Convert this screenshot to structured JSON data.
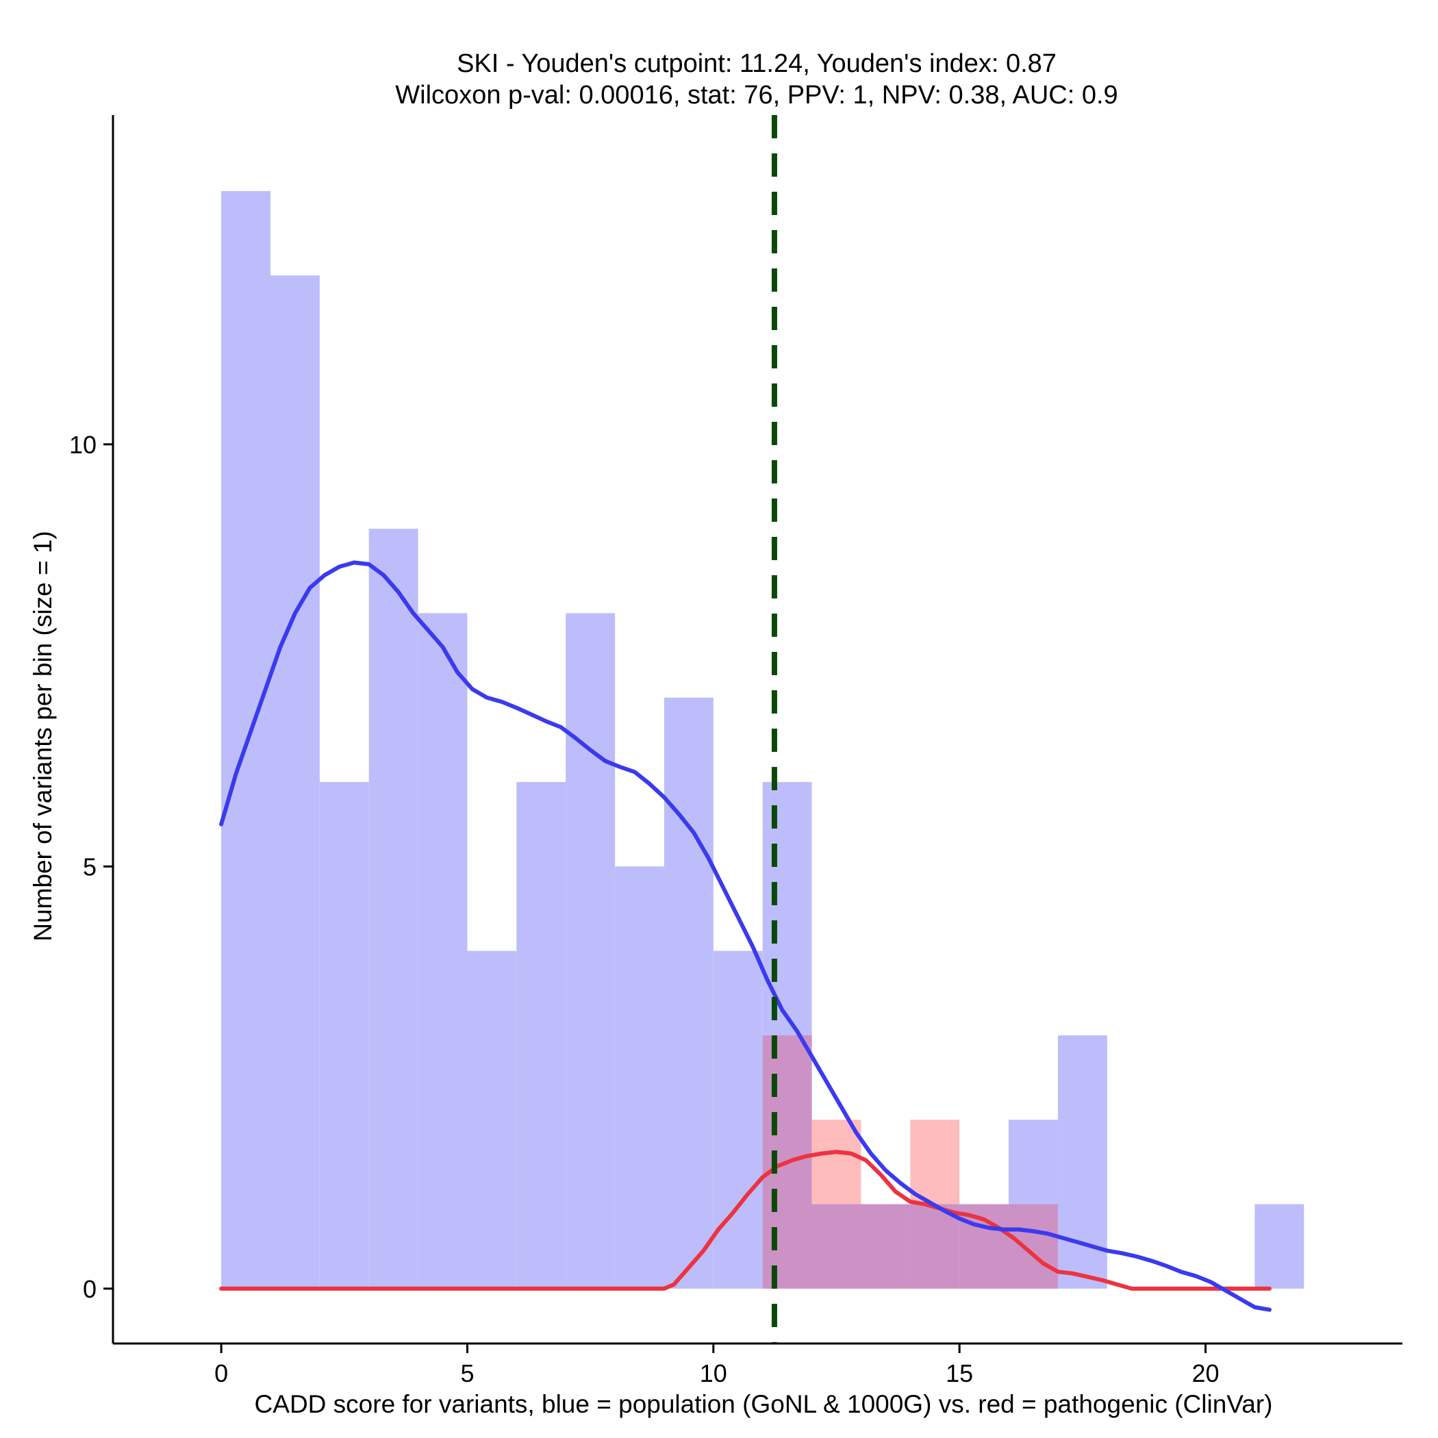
{
  "chart_data": {
    "type": "histogram",
    "title_line1": "SKI - Youden's cutpoint: 11.24, Youden's index: 0.87",
    "title_line2": "Wilcoxon p-val: 0.00016, stat: 76, PPV: 1, NPV: 0.38, AUC: 0.9",
    "xlabel": "CADD score for variants, blue = population (GoNL & 1000G) vs. red = pathogenic (ClinVar)",
    "ylabel": "Number of variants per bin (size = 1)",
    "xlim": [
      -2.2,
      24.0
    ],
    "ylim": [
      -0.65,
      13.9
    ],
    "x_ticks": [
      0,
      5,
      10,
      15,
      20
    ],
    "y_ticks": [
      0,
      5,
      10
    ],
    "cutpoint": 11.24,
    "colors": {
      "population_bar": "#bdbdfb",
      "pathogenic_bar": "#ffbcbc",
      "overlap_bar": "#cc92c6",
      "population_line": "#3a3aef",
      "pathogenic_line": "#ec3340",
      "cutpoint_line": "#0a4a06"
    },
    "series": [
      {
        "name": "population (GoNL & 1000G)",
        "bins": [
          {
            "x0": 0,
            "x1": 1,
            "count": 13
          },
          {
            "x0": 1,
            "x1": 2,
            "count": 12
          },
          {
            "x0": 2,
            "x1": 3,
            "count": 6
          },
          {
            "x0": 3,
            "x1": 4,
            "count": 9
          },
          {
            "x0": 4,
            "x1": 5,
            "count": 8
          },
          {
            "x0": 5,
            "x1": 6,
            "count": 4
          },
          {
            "x0": 6,
            "x1": 7,
            "count": 6
          },
          {
            "x0": 7,
            "x1": 8,
            "count": 8
          },
          {
            "x0": 8,
            "x1": 9,
            "count": 5
          },
          {
            "x0": 9,
            "x1": 10,
            "count": 7
          },
          {
            "x0": 10,
            "x1": 11,
            "count": 4
          },
          {
            "x0": 11,
            "x1": 12,
            "count": 6
          },
          {
            "x0": 12,
            "x1": 13,
            "count": 1
          },
          {
            "x0": 13,
            "x1": 14,
            "count": 1
          },
          {
            "x0": 14,
            "x1": 15,
            "count": 1
          },
          {
            "x0": 15,
            "x1": 16,
            "count": 1
          },
          {
            "x0": 16,
            "x1": 17,
            "count": 2
          },
          {
            "x0": 17,
            "x1": 18,
            "count": 3
          },
          {
            "x0": 21,
            "x1": 22,
            "count": 1
          }
        ],
        "density_curve": [
          [
            0.0,
            5.5
          ],
          [
            0.3,
            6.1
          ],
          [
            0.6,
            6.6
          ],
          [
            0.9,
            7.1
          ],
          [
            1.2,
            7.6
          ],
          [
            1.5,
            8.0
          ],
          [
            1.8,
            8.3
          ],
          [
            2.1,
            8.45
          ],
          [
            2.4,
            8.55
          ],
          [
            2.7,
            8.6
          ],
          [
            3.0,
            8.58
          ],
          [
            3.3,
            8.45
          ],
          [
            3.6,
            8.25
          ],
          [
            3.9,
            8.0
          ],
          [
            4.2,
            7.8
          ],
          [
            4.5,
            7.6
          ],
          [
            4.8,
            7.3
          ],
          [
            5.1,
            7.1
          ],
          [
            5.4,
            7.0
          ],
          [
            5.7,
            6.95
          ],
          [
            6.0,
            6.88
          ],
          [
            6.3,
            6.8
          ],
          [
            6.6,
            6.72
          ],
          [
            6.9,
            6.65
          ],
          [
            7.2,
            6.52
          ],
          [
            7.5,
            6.38
          ],
          [
            7.8,
            6.25
          ],
          [
            8.1,
            6.18
          ],
          [
            8.4,
            6.12
          ],
          [
            8.7,
            5.98
          ],
          [
            9.0,
            5.82
          ],
          [
            9.3,
            5.62
          ],
          [
            9.6,
            5.4
          ],
          [
            9.9,
            5.1
          ],
          [
            10.2,
            4.75
          ],
          [
            10.5,
            4.4
          ],
          [
            10.8,
            4.05
          ],
          [
            11.1,
            3.65
          ],
          [
            11.4,
            3.3
          ],
          [
            11.7,
            3.05
          ],
          [
            12.0,
            2.75
          ],
          [
            12.3,
            2.45
          ],
          [
            12.6,
            2.15
          ],
          [
            12.9,
            1.85
          ],
          [
            13.2,
            1.6
          ],
          [
            13.5,
            1.4
          ],
          [
            13.8,
            1.25
          ],
          [
            14.1,
            1.12
          ],
          [
            14.4,
            1.02
          ],
          [
            14.7,
            0.92
          ],
          [
            15.0,
            0.83
          ],
          [
            15.3,
            0.76
          ],
          [
            15.6,
            0.72
          ],
          [
            15.9,
            0.7
          ],
          [
            16.2,
            0.7
          ],
          [
            16.5,
            0.68
          ],
          [
            16.8,
            0.65
          ],
          [
            17.1,
            0.6
          ],
          [
            17.4,
            0.55
          ],
          [
            17.7,
            0.5
          ],
          [
            18.0,
            0.45
          ],
          [
            18.3,
            0.42
          ],
          [
            18.6,
            0.38
          ],
          [
            18.9,
            0.33
          ],
          [
            19.2,
            0.27
          ],
          [
            19.5,
            0.2
          ],
          [
            19.8,
            0.15
          ],
          [
            20.1,
            0.08
          ],
          [
            20.4,
            -0.02
          ],
          [
            20.7,
            -0.12
          ],
          [
            21.0,
            -0.22
          ],
          [
            21.3,
            -0.25
          ]
        ]
      },
      {
        "name": "pathogenic (ClinVar)",
        "bins": [
          {
            "x0": 11,
            "x1": 12,
            "count": 3
          },
          {
            "x0": 12,
            "x1": 13,
            "count": 2
          },
          {
            "x0": 13,
            "x1": 14,
            "count": 1
          },
          {
            "x0": 14,
            "x1": 15,
            "count": 2
          },
          {
            "x0": 15,
            "x1": 16,
            "count": 1
          },
          {
            "x0": 16,
            "x1": 17,
            "count": 1
          }
        ],
        "density_curve": [
          [
            0.0,
            0.0
          ],
          [
            3.0,
            0.0
          ],
          [
            6.0,
            0.0
          ],
          [
            9.0,
            0.0
          ],
          [
            9.2,
            0.05
          ],
          [
            9.5,
            0.25
          ],
          [
            9.8,
            0.45
          ],
          [
            10.1,
            0.7
          ],
          [
            10.4,
            0.9
          ],
          [
            10.7,
            1.12
          ],
          [
            11.0,
            1.32
          ],
          [
            11.3,
            1.45
          ],
          [
            11.6,
            1.52
          ],
          [
            11.9,
            1.57
          ],
          [
            12.2,
            1.6
          ],
          [
            12.5,
            1.62
          ],
          [
            12.8,
            1.6
          ],
          [
            13.1,
            1.52
          ],
          [
            13.4,
            1.35
          ],
          [
            13.7,
            1.15
          ],
          [
            14.0,
            1.03
          ],
          [
            14.3,
            1.0
          ],
          [
            14.6,
            0.95
          ],
          [
            14.9,
            0.9
          ],
          [
            15.2,
            0.87
          ],
          [
            15.5,
            0.82
          ],
          [
            15.8,
            0.72
          ],
          [
            16.1,
            0.6
          ],
          [
            16.4,
            0.45
          ],
          [
            16.7,
            0.3
          ],
          [
            17.0,
            0.2
          ],
          [
            17.3,
            0.18
          ],
          [
            17.6,
            0.14
          ],
          [
            17.9,
            0.1
          ],
          [
            18.2,
            0.05
          ],
          [
            18.5,
            0.0
          ],
          [
            19.5,
            0.0
          ],
          [
            21.3,
            0.0
          ]
        ]
      }
    ]
  }
}
